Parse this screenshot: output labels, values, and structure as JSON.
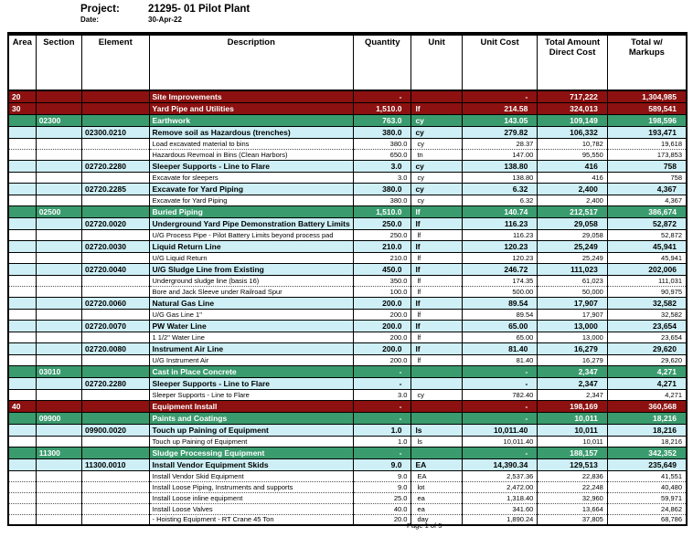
{
  "header": {
    "project_label": "Project:",
    "project_value": "21295- 01 Pilot Plant",
    "date_label": "Date:",
    "date_value": "30-Apr-22"
  },
  "colors": {
    "area_row": "#8C1110",
    "section_row": "#3A9B6E",
    "element_row": "#CDEFF5"
  },
  "table": {
    "columns": [
      {
        "key": "area",
        "label": "Area"
      },
      {
        "key": "section",
        "label": "Section"
      },
      {
        "key": "element",
        "label": "Element"
      },
      {
        "key": "description",
        "label": "Description"
      },
      {
        "key": "quantity",
        "label": "Quantity"
      },
      {
        "key": "unit",
        "label": "Unit"
      },
      {
        "key": "unit_cost",
        "label": "Unit Cost"
      },
      {
        "key": "direct_cost",
        "label": "Total Amount\nDirect Cost"
      },
      {
        "key": "markups",
        "label": "Total w/\nMarkups"
      }
    ],
    "rows": [
      {
        "type": "area",
        "area": "20",
        "section": "",
        "element": "",
        "description": "Site Improvements",
        "quantity": "-",
        "unit": "",
        "unit_cost": "-",
        "direct_cost": "717,222",
        "markups": "1,304,985"
      },
      {
        "type": "area",
        "area": "30",
        "section": "",
        "element": "",
        "description": "Yard Pipe and Utilities",
        "quantity": "1,510.0",
        "unit": "lf",
        "unit_cost": "214.58",
        "direct_cost": "324,013",
        "markups": "589,541"
      },
      {
        "type": "section",
        "area": "",
        "section": "02300",
        "element": "",
        "description": "Earthwork",
        "quantity": "763.0",
        "unit": "cy",
        "unit_cost": "143.05",
        "direct_cost": "109,149",
        "markups": "198,596"
      },
      {
        "type": "element",
        "area": "",
        "section": "",
        "element": "02300.0210",
        "description": "Remove soil as Hazardous (trenches)",
        "quantity": "380.0",
        "unit": "cy",
        "unit_cost": "279.82",
        "direct_cost": "106,332",
        "markups": "193,471"
      },
      {
        "type": "detail",
        "area": "",
        "section": "",
        "element": "",
        "description": "Load excavated material to bins",
        "quantity": "380.0",
        "unit": "cy",
        "unit_cost": "28.37",
        "direct_cost": "10,782",
        "markups": "19,618"
      },
      {
        "type": "detail",
        "area": "",
        "section": "",
        "element": "",
        "description": "Hazardous Revmoal in Bins (Clean Harbors)",
        "quantity": "650.0",
        "unit": "tn",
        "unit_cost": "147.00",
        "direct_cost": "95,550",
        "markups": "173,853"
      },
      {
        "type": "element",
        "area": "",
        "section": "",
        "element": "02720.2280",
        "description": "Sleeper Supports - Line to Flare",
        "quantity": "3.0",
        "unit": "cy",
        "unit_cost": "138.80",
        "direct_cost": "416",
        "markups": "758"
      },
      {
        "type": "detail",
        "area": "",
        "section": "",
        "element": "",
        "description": "Excavate for sleepers",
        "quantity": "3.0",
        "unit": "cy",
        "unit_cost": "138.80",
        "direct_cost": "416",
        "markups": "758"
      },
      {
        "type": "element",
        "area": "",
        "section": "",
        "element": "02720.2285",
        "description": "Excavate for Yard Piping",
        "quantity": "380.0",
        "unit": "cy",
        "unit_cost": "6.32",
        "direct_cost": "2,400",
        "markups": "4,367"
      },
      {
        "type": "detail",
        "area": "",
        "section": "",
        "element": "",
        "description": "Excavate for Yard Piping",
        "quantity": "380.0",
        "unit": "cy",
        "unit_cost": "6.32",
        "direct_cost": "2,400",
        "markups": "4,367"
      },
      {
        "type": "section",
        "area": "",
        "section": "02500",
        "element": "",
        "description": "Buried Piping",
        "quantity": "1,510.0",
        "unit": "lf",
        "unit_cost": "140.74",
        "direct_cost": "212,517",
        "markups": "386,674"
      },
      {
        "type": "element",
        "area": "",
        "section": "",
        "element": "02720.0020",
        "description": "Underground Yard Pipe Demonstration Battery Limits",
        "quantity": "250.0",
        "unit": "lf",
        "unit_cost": "116.23",
        "direct_cost": "29,058",
        "markups": "52,872"
      },
      {
        "type": "detail",
        "area": "",
        "section": "",
        "element": "",
        "description": "U/G Process Pipe - Pilot Battery Limits beyond process pad",
        "quantity": "250.0",
        "unit": "lf",
        "unit_cost": "116.23",
        "direct_cost": "29,058",
        "markups": "52,872"
      },
      {
        "type": "element",
        "area": "",
        "section": "",
        "element": "02720.0030",
        "description": "Liquid Return Line",
        "quantity": "210.0",
        "unit": "lf",
        "unit_cost": "120.23",
        "direct_cost": "25,249",
        "markups": "45,941"
      },
      {
        "type": "detail",
        "area": "",
        "section": "",
        "element": "",
        "description": "U/G Liquid Return",
        "quantity": "210.0",
        "unit": "lf",
        "unit_cost": "120.23",
        "direct_cost": "25,249",
        "markups": "45,941"
      },
      {
        "type": "element",
        "area": "",
        "section": "",
        "element": "02720.0040",
        "description": "U/G Sludge Line from Existing",
        "quantity": "450.0",
        "unit": "lf",
        "unit_cost": "246.72",
        "direct_cost": "111,023",
        "markups": "202,006"
      },
      {
        "type": "detail",
        "area": "",
        "section": "",
        "element": "",
        "description": "Underground sludge line (basis 16)",
        "quantity": "350.0",
        "unit": "lf",
        "unit_cost": "174.35",
        "direct_cost": "61,023",
        "markups": "111,031"
      },
      {
        "type": "detail",
        "area": "",
        "section": "",
        "element": "",
        "description": "Bore and Jack Sleeve under Railroad Spur",
        "quantity": "100.0",
        "unit": "lf",
        "unit_cost": "500.00",
        "direct_cost": "50,000",
        "markups": "90,975"
      },
      {
        "type": "element",
        "area": "",
        "section": "",
        "element": "02720.0060",
        "description": "Natural Gas Line",
        "quantity": "200.0",
        "unit": "lf",
        "unit_cost": "89.54",
        "direct_cost": "17,907",
        "markups": "32,582"
      },
      {
        "type": "detail",
        "area": "",
        "section": "",
        "element": "",
        "description": "U/G Gas Line 1\"",
        "quantity": "200.0",
        "unit": "lf",
        "unit_cost": "89.54",
        "direct_cost": "17,907",
        "markups": "32,582"
      },
      {
        "type": "element",
        "area": "",
        "section": "",
        "element": "02720.0070",
        "description": "PW Water Line",
        "quantity": "200.0",
        "unit": "lf",
        "unit_cost": "65.00",
        "direct_cost": "13,000",
        "markups": "23,654"
      },
      {
        "type": "detail",
        "area": "",
        "section": "",
        "element": "",
        "description": "1 1/2\" Water Line",
        "quantity": "200.0",
        "unit": "lf",
        "unit_cost": "65.00",
        "direct_cost": "13,000",
        "markups": "23,654"
      },
      {
        "type": "element",
        "area": "",
        "section": "",
        "element": "02720.0080",
        "description": "Instrument Air Line",
        "quantity": "200.0",
        "unit": "lf",
        "unit_cost": "81.40",
        "direct_cost": "16,279",
        "markups": "29,620"
      },
      {
        "type": "detail",
        "area": "",
        "section": "",
        "element": "",
        "description": "U/G Instrument Air",
        "quantity": "200.0",
        "unit": "lf",
        "unit_cost": "81.40",
        "direct_cost": "16,279",
        "markups": "29,620"
      },
      {
        "type": "section",
        "area": "",
        "section": "03010",
        "element": "",
        "description": "Cast in Place Concrete",
        "quantity": "-",
        "unit": "",
        "unit_cost": "-",
        "direct_cost": "2,347",
        "markups": "4,271"
      },
      {
        "type": "element",
        "area": "",
        "section": "",
        "element": "02720.2280",
        "description": "Sleeper Supports - Line to Flare",
        "quantity": "-",
        "unit": "",
        "unit_cost": "-",
        "direct_cost": "2,347",
        "markups": "4,271"
      },
      {
        "type": "detail",
        "area": "",
        "section": "",
        "element": "",
        "description": "Sleeper Supports - Line to Flare",
        "quantity": "3.0",
        "unit": "cy",
        "unit_cost": "782.40",
        "direct_cost": "2,347",
        "markups": "4,271"
      },
      {
        "type": "area",
        "area": "40",
        "section": "",
        "element": "",
        "description": "Equipment Install",
        "quantity": "-",
        "unit": "",
        "unit_cost": "-",
        "direct_cost": "198,169",
        "markups": "360,568"
      },
      {
        "type": "section",
        "area": "",
        "section": "09900",
        "element": "",
        "description": "Paints and Coatings",
        "quantity": "-",
        "unit": "",
        "unit_cost": "-",
        "direct_cost": "10,011",
        "markups": "18,216"
      },
      {
        "type": "element",
        "area": "",
        "section": "",
        "element": "09900.0020",
        "description": "Touch up Paining of Equipment",
        "quantity": "1.0",
        "unit": "ls",
        "unit_cost": "10,011.40",
        "direct_cost": "10,011",
        "markups": "18,216"
      },
      {
        "type": "detail",
        "area": "",
        "section": "",
        "element": "",
        "description": "Touch up Paining of Equipment",
        "quantity": "1.0",
        "unit": "ls",
        "unit_cost": "10,011.40",
        "direct_cost": "10,011",
        "markups": "18,216"
      },
      {
        "type": "section",
        "area": "",
        "section": "11300",
        "element": "",
        "description": "Sludge Processing Equipment",
        "quantity": "-",
        "unit": "",
        "unit_cost": "-",
        "direct_cost": "188,157",
        "markups": "342,352"
      },
      {
        "type": "element",
        "area": "",
        "section": "",
        "element": "11300.0010",
        "description": "Install Vendor Equipment Skids",
        "quantity": "9.0",
        "unit": "EA",
        "unit_cost": "14,390.34",
        "direct_cost": "129,513",
        "markups": "235,649"
      },
      {
        "type": "detail",
        "area": "",
        "section": "",
        "element": "",
        "description": "Install Vendor Skid Equipment",
        "quantity": "9.0",
        "unit": "EA",
        "unit_cost": "2,537.36",
        "direct_cost": "22,836",
        "markups": "41,551"
      },
      {
        "type": "detail",
        "area": "",
        "section": "",
        "element": "",
        "description": "Install Loose Piping, Instruments and supports",
        "quantity": "9.0",
        "unit": "lot",
        "unit_cost": "2,472.00",
        "direct_cost": "22,248",
        "markups": "40,480"
      },
      {
        "type": "detail",
        "area": "",
        "section": "",
        "element": "",
        "description": "Install Loose inline equipment",
        "quantity": "25.0",
        "unit": "ea",
        "unit_cost": "1,318.40",
        "direct_cost": "32,960",
        "markups": "59,971"
      },
      {
        "type": "detail",
        "area": "",
        "section": "",
        "element": "",
        "description": "Install Loose Valves",
        "quantity": "40.0",
        "unit": "ea",
        "unit_cost": "341.60",
        "direct_cost": "13,664",
        "markups": "24,862"
      },
      {
        "type": "detail",
        "area": "",
        "section": "",
        "element": "",
        "description": "- Hoisting Equipment - RT Crane 45 Ton",
        "quantity": "20.0",
        "unit": "day",
        "unit_cost": "1,890.24",
        "direct_cost": "37,805",
        "markups": "68,786"
      }
    ]
  },
  "footer": {
    "page": "Page 1 of 5"
  }
}
